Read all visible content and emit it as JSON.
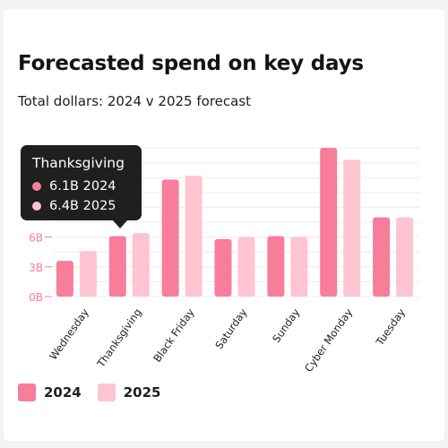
{
  "colors": {
    "series_2024": "#f77d9b",
    "series_2025": "#ffc4d1",
    "axis_text": "#f77d9b",
    "grid": "#ececec"
  },
  "chart_data": {
    "type": "bar",
    "title": "Forecasted spend on key days",
    "subtitle": "Total dollars: 2024 v 2025 forecast",
    "categories": [
      "Wednesday",
      "Thanksgiving",
      "Black Friday",
      "Saturday",
      "Sunday",
      "Cyber Monday",
      "Tuesday"
    ],
    "category_labels": [
      "Wednesday",
      "Thanksgiving",
      "Black Friday",
      "Saturday",
      "Sunday",
      "Cyber Monday",
      "Tuesday"
    ],
    "series": [
      {
        "name": "2024",
        "values": [
          3.6,
          6.1,
          11.8,
          5.8,
          6.1,
          15.0,
          8.0
        ]
      },
      {
        "name": "2025",
        "values": [
          4.6,
          6.4,
          12.2,
          6.0,
          6.0,
          13.8,
          8.0
        ]
      }
    ],
    "yticks": [
      0,
      3,
      6
    ],
    "ytick_labels": [
      "0B",
      "3B",
      "6B"
    ],
    "ylim": [
      0,
      15
    ],
    "grid": true,
    "legend": {
      "position": "bottom-left",
      "labels": [
        "2024",
        "2025"
      ]
    },
    "tooltip": {
      "title": "Thanksgiving",
      "rows": [
        "6.1B 2024",
        "6.4B 2025"
      ]
    }
  }
}
